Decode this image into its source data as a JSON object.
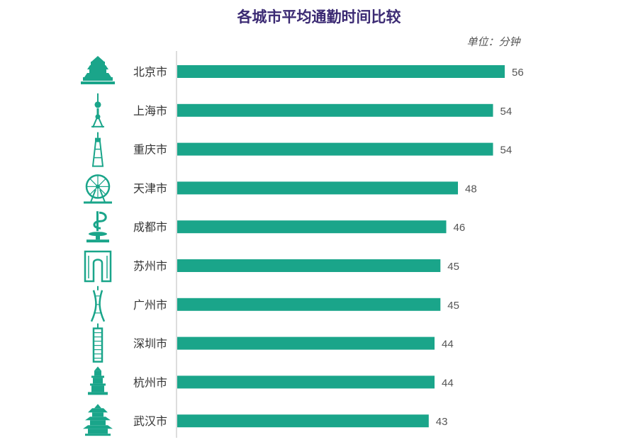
{
  "chart_data": {
    "type": "bar",
    "orientation": "horizontal",
    "title": "各城市平均通勤时间比较",
    "unit": "单位：分钟",
    "categories": [
      "北京市",
      "上海市",
      "重庆市",
      "天津市",
      "成都市",
      "苏州市",
      "广州市",
      "深圳市",
      "杭州市",
      "武汉市"
    ],
    "values": [
      56,
      54,
      54,
      48,
      46,
      45,
      45,
      44,
      44,
      43
    ],
    "icons": [
      "temple-of-heaven-icon",
      "oriental-pearl-tower-icon",
      "chongqing-tower-icon",
      "tianjin-eye-icon",
      "chengdu-sculpture-icon",
      "suzhou-gate-icon",
      "canton-tower-icon",
      "shenzhen-tower-icon",
      "leifeng-pagoda-icon",
      "yellow-crane-tower-icon"
    ],
    "bar_color": "#1aa58a",
    "icon_color": "#1aa58a",
    "title_color": "#3b2a73",
    "xlim": [
      0,
      56
    ],
    "grid": false,
    "legend": "none"
  }
}
